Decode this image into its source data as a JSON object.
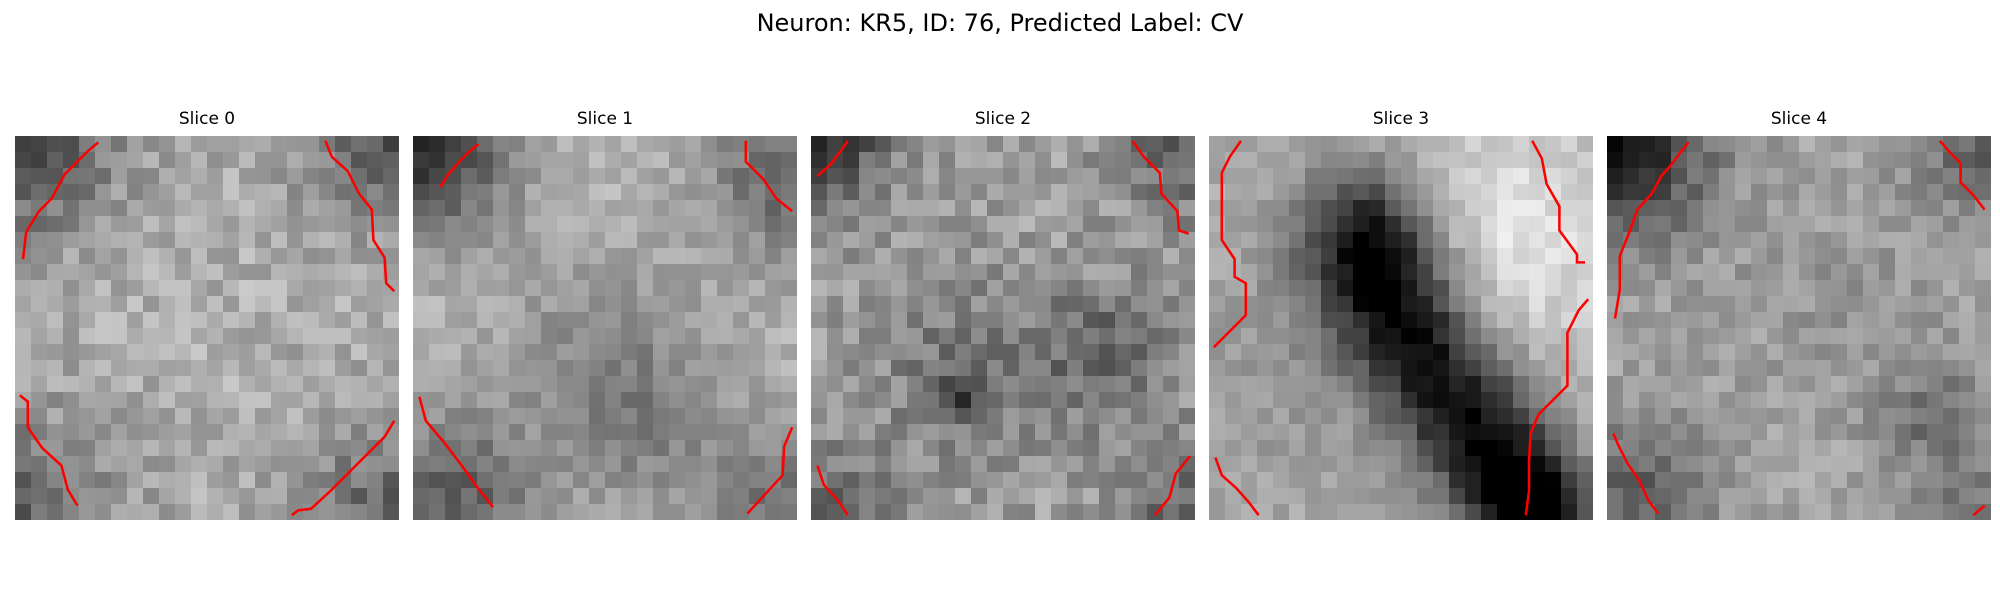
{
  "figure": {
    "title": "Neuron: KR5, ID: 76, Predicted Label: CV"
  },
  "colors": {
    "contour": "#ff0000",
    "background": "#ffffff"
  },
  "slices": [
    {
      "title": "Slice 0"
    },
    {
      "title": "Slice 1"
    },
    {
      "title": "Slice 2"
    },
    {
      "title": "Slice 3"
    },
    {
      "title": "Slice 4"
    }
  ]
}
